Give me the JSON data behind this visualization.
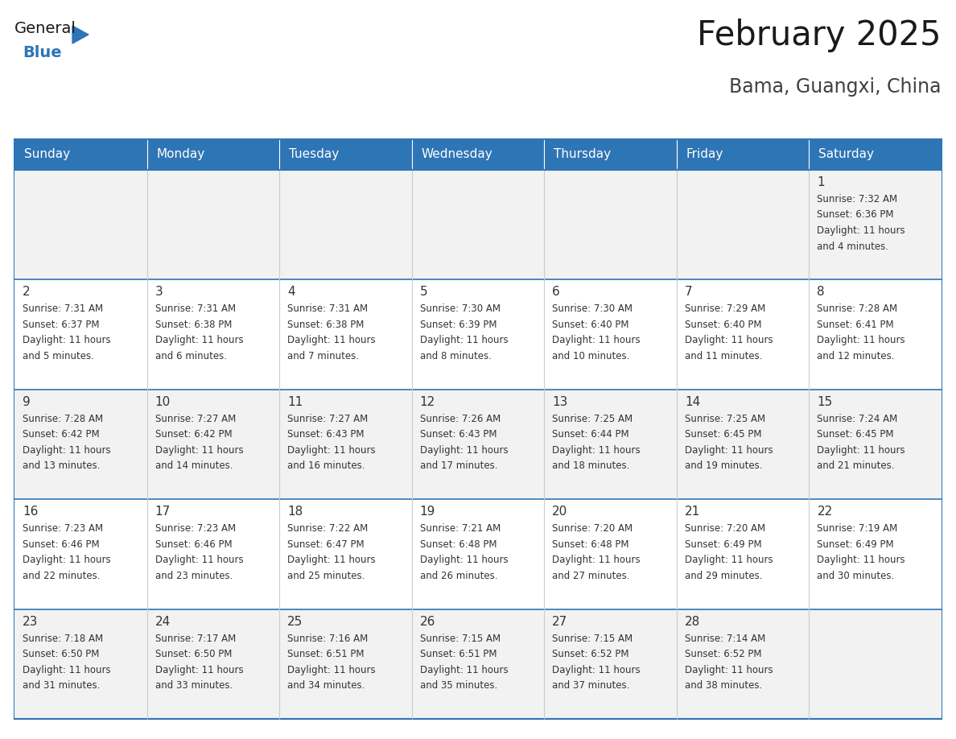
{
  "title": "February 2025",
  "subtitle": "Bama, Guangxi, China",
  "days_of_week": [
    "Sunday",
    "Monday",
    "Tuesday",
    "Wednesday",
    "Thursday",
    "Friday",
    "Saturday"
  ],
  "header_bg": "#2E75B6",
  "header_text_color": "#FFFFFF",
  "row_bg_odd": "#F2F2F2",
  "row_bg_even": "#FFFFFF",
  "day_number_color": "#333333",
  "info_text_color": "#333333",
  "border_color": "#2E75B6",
  "col_line_color": "#CCCCCC",
  "title_color": "#1a1a1a",
  "subtitle_color": "#404040",
  "calendar_data": [
    [
      null,
      null,
      null,
      null,
      null,
      null,
      {
        "day": 1,
        "sunrise": "7:32 AM",
        "sunset": "6:36 PM",
        "daylight": "11 hours and 4 minutes."
      }
    ],
    [
      {
        "day": 2,
        "sunrise": "7:31 AM",
        "sunset": "6:37 PM",
        "daylight": "11 hours and 5 minutes."
      },
      {
        "day": 3,
        "sunrise": "7:31 AM",
        "sunset": "6:38 PM",
        "daylight": "11 hours and 6 minutes."
      },
      {
        "day": 4,
        "sunrise": "7:31 AM",
        "sunset": "6:38 PM",
        "daylight": "11 hours and 7 minutes."
      },
      {
        "day": 5,
        "sunrise": "7:30 AM",
        "sunset": "6:39 PM",
        "daylight": "11 hours and 8 minutes."
      },
      {
        "day": 6,
        "sunrise": "7:30 AM",
        "sunset": "6:40 PM",
        "daylight": "11 hours and 10 minutes."
      },
      {
        "day": 7,
        "sunrise": "7:29 AM",
        "sunset": "6:40 PM",
        "daylight": "11 hours and 11 minutes."
      },
      {
        "day": 8,
        "sunrise": "7:28 AM",
        "sunset": "6:41 PM",
        "daylight": "11 hours and 12 minutes."
      }
    ],
    [
      {
        "day": 9,
        "sunrise": "7:28 AM",
        "sunset": "6:42 PM",
        "daylight": "11 hours and 13 minutes."
      },
      {
        "day": 10,
        "sunrise": "7:27 AM",
        "sunset": "6:42 PM",
        "daylight": "11 hours and 14 minutes."
      },
      {
        "day": 11,
        "sunrise": "7:27 AM",
        "sunset": "6:43 PM",
        "daylight": "11 hours and 16 minutes."
      },
      {
        "day": 12,
        "sunrise": "7:26 AM",
        "sunset": "6:43 PM",
        "daylight": "11 hours and 17 minutes."
      },
      {
        "day": 13,
        "sunrise": "7:25 AM",
        "sunset": "6:44 PM",
        "daylight": "11 hours and 18 minutes."
      },
      {
        "day": 14,
        "sunrise": "7:25 AM",
        "sunset": "6:45 PM",
        "daylight": "11 hours and 19 minutes."
      },
      {
        "day": 15,
        "sunrise": "7:24 AM",
        "sunset": "6:45 PM",
        "daylight": "11 hours and 21 minutes."
      }
    ],
    [
      {
        "day": 16,
        "sunrise": "7:23 AM",
        "sunset": "6:46 PM",
        "daylight": "11 hours and 22 minutes."
      },
      {
        "day": 17,
        "sunrise": "7:23 AM",
        "sunset": "6:46 PM",
        "daylight": "11 hours and 23 minutes."
      },
      {
        "day": 18,
        "sunrise": "7:22 AM",
        "sunset": "6:47 PM",
        "daylight": "11 hours and 25 minutes."
      },
      {
        "day": 19,
        "sunrise": "7:21 AM",
        "sunset": "6:48 PM",
        "daylight": "11 hours and 26 minutes."
      },
      {
        "day": 20,
        "sunrise": "7:20 AM",
        "sunset": "6:48 PM",
        "daylight": "11 hours and 27 minutes."
      },
      {
        "day": 21,
        "sunrise": "7:20 AM",
        "sunset": "6:49 PM",
        "daylight": "11 hours and 29 minutes."
      },
      {
        "day": 22,
        "sunrise": "7:19 AM",
        "sunset": "6:49 PM",
        "daylight": "11 hours and 30 minutes."
      }
    ],
    [
      {
        "day": 23,
        "sunrise": "7:18 AM",
        "sunset": "6:50 PM",
        "daylight": "11 hours and 31 minutes."
      },
      {
        "day": 24,
        "sunrise": "7:17 AM",
        "sunset": "6:50 PM",
        "daylight": "11 hours and 33 minutes."
      },
      {
        "day": 25,
        "sunrise": "7:16 AM",
        "sunset": "6:51 PM",
        "daylight": "11 hours and 34 minutes."
      },
      {
        "day": 26,
        "sunrise": "7:15 AM",
        "sunset": "6:51 PM",
        "daylight": "11 hours and 35 minutes."
      },
      {
        "day": 27,
        "sunrise": "7:15 AM",
        "sunset": "6:52 PM",
        "daylight": "11 hours and 37 minutes."
      },
      {
        "day": 28,
        "sunrise": "7:14 AM",
        "sunset": "6:52 PM",
        "daylight": "11 hours and 38 minutes."
      },
      null
    ]
  ],
  "logo_text_general": "General",
  "logo_text_blue": "Blue",
  "logo_color_general": "#1a1a1a",
  "logo_color_blue": "#2E75B6",
  "logo_triangle_color": "#2E75B6"
}
